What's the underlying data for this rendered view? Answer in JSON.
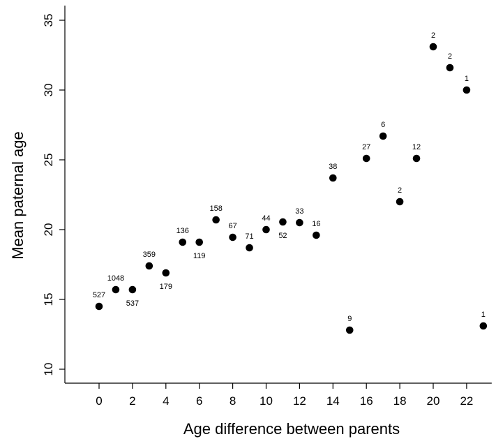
{
  "chart_data": {
    "type": "scatter",
    "title": "",
    "xlabel": "Age difference between parents",
    "ylabel": "Mean paternal age",
    "xlim": [
      0,
      23
    ],
    "ylim": [
      10,
      35
    ],
    "xticks": [
      "0",
      "2",
      "4",
      "6",
      "8",
      "10",
      "12",
      "14",
      "16",
      "18",
      "20",
      "22"
    ],
    "yticks": [
      "10",
      "15",
      "20",
      "25",
      "30",
      "35"
    ],
    "grid": false,
    "legend": "none",
    "point_color": "#000000",
    "points": [
      {
        "x": 0,
        "y": 14.5,
        "label": "527",
        "label_pos": "above"
      },
      {
        "x": 1,
        "y": 15.7,
        "label": "1048",
        "label_pos": "above"
      },
      {
        "x": 2,
        "y": 15.7,
        "label": "537",
        "label_pos": "below"
      },
      {
        "x": 3,
        "y": 17.4,
        "label": "359",
        "label_pos": "above"
      },
      {
        "x": 4,
        "y": 16.9,
        "label": "179",
        "label_pos": "below"
      },
      {
        "x": 5,
        "y": 19.1,
        "label": "136",
        "label_pos": "above"
      },
      {
        "x": 6,
        "y": 19.1,
        "label": "119",
        "label_pos": "below"
      },
      {
        "x": 7,
        "y": 20.7,
        "label": "158",
        "label_pos": "above"
      },
      {
        "x": 8,
        "y": 19.45,
        "label": "67",
        "label_pos": "above"
      },
      {
        "x": 9,
        "y": 18.7,
        "label": "71",
        "label_pos": "above"
      },
      {
        "x": 10,
        "y": 20.0,
        "label": "44",
        "label_pos": "above"
      },
      {
        "x": 11,
        "y": 20.55,
        "label": "52",
        "label_pos": "below"
      },
      {
        "x": 12,
        "y": 20.5,
        "label": "33",
        "label_pos": "above"
      },
      {
        "x": 13,
        "y": 19.6,
        "label": "16",
        "label_pos": "above"
      },
      {
        "x": 14,
        "y": 23.7,
        "label": "38",
        "label_pos": "above"
      },
      {
        "x": 15,
        "y": 12.8,
        "label": "9",
        "label_pos": "above"
      },
      {
        "x": 16,
        "y": 25.1,
        "label": "27",
        "label_pos": "above"
      },
      {
        "x": 17,
        "y": 26.7,
        "label": "6",
        "label_pos": "above"
      },
      {
        "x": 18,
        "y": 22.0,
        "label": "2",
        "label_pos": "above"
      },
      {
        "x": 19,
        "y": 25.1,
        "label": "12",
        "label_pos": "above"
      },
      {
        "x": 20,
        "y": 33.1,
        "label": "2",
        "label_pos": "above"
      },
      {
        "x": 21,
        "y": 31.6,
        "label": "2",
        "label_pos": "above"
      },
      {
        "x": 22,
        "y": 30.0,
        "label": "1",
        "label_pos": "above"
      },
      {
        "x": 23,
        "y": 13.1,
        "label": "1",
        "label_pos": "above"
      }
    ]
  }
}
